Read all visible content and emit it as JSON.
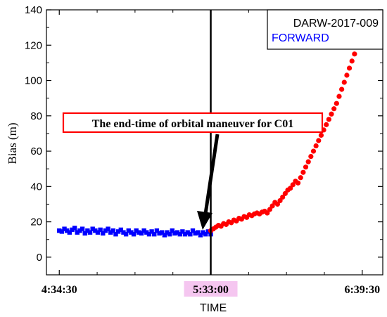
{
  "chart_data": {
    "type": "scatter",
    "title": "",
    "xlabel": "TIME",
    "ylabel": "Bias (m)",
    "ylim": [
      -10,
      140
    ],
    "y_ticks": [
      "0",
      "20",
      "40",
      "60",
      "80",
      "100",
      "120",
      "140"
    ],
    "x_tick_labels": [
      "4:34:30",
      "5:33:00",
      "6:39:30"
    ],
    "highlight_tick": "5:33:00",
    "legend": {
      "placement": "top-right",
      "lines": [
        {
          "text": "DARW-2017-009",
          "color": "#000000"
        },
        {
          "text": "FORWARD",
          "color": "#0000ff"
        }
      ]
    },
    "annotation": "The end-time of  orbital maneuver for C01",
    "colors": {
      "forward_series": "#0000ff",
      "after_series": "#ff0000",
      "annotation_box": "#ff0000",
      "highlight_tick_text": "#8b1a1a",
      "highlight_tick_bg": "#f5c6f0"
    },
    "series": [
      {
        "marker": "square",
        "color": "#0000ff",
        "points": [
          [
            0,
            15
          ],
          [
            1,
            14.5
          ],
          [
            2,
            16
          ],
          [
            3,
            15
          ],
          [
            4,
            14
          ],
          [
            5,
            15.5
          ],
          [
            6,
            16.5
          ],
          [
            7,
            14
          ],
          [
            8,
            15
          ],
          [
            9,
            16
          ],
          [
            10,
            13.5
          ],
          [
            11,
            15
          ],
          [
            12,
            14
          ],
          [
            13,
            16
          ],
          [
            14,
            15
          ],
          [
            15,
            14
          ],
          [
            16,
            15.5
          ],
          [
            17,
            13.5
          ],
          [
            18,
            15
          ],
          [
            19,
            16
          ],
          [
            20,
            14
          ],
          [
            21,
            15
          ],
          [
            22,
            13
          ],
          [
            23,
            14.5
          ],
          [
            24,
            15.5
          ],
          [
            25,
            14
          ],
          [
            26,
            13
          ],
          [
            27,
            15
          ],
          [
            28,
            14
          ],
          [
            29,
            13
          ],
          [
            30,
            15
          ],
          [
            31,
            14
          ],
          [
            32,
            13.5
          ],
          [
            33,
            15
          ],
          [
            34,
            14
          ],
          [
            35,
            13
          ],
          [
            36,
            14.5
          ],
          [
            37,
            13
          ],
          [
            38,
            15
          ],
          [
            39,
            13.5
          ],
          [
            40,
            14
          ],
          [
            41,
            12.5
          ],
          [
            42,
            14
          ],
          [
            43,
            13
          ],
          [
            44,
            15
          ],
          [
            45,
            13.5
          ],
          [
            46,
            14
          ],
          [
            47,
            13
          ],
          [
            48,
            14.5
          ],
          [
            49,
            13
          ],
          [
            50,
            14
          ],
          [
            51,
            13
          ],
          [
            52,
            15
          ],
          [
            53,
            13.5
          ],
          [
            54,
            14
          ],
          [
            55,
            12.5
          ],
          [
            56,
            14
          ],
          [
            57,
            13
          ],
          [
            58,
            14.5
          ],
          [
            59,
            13
          ]
        ]
      },
      {
        "marker": "circle",
        "color": "#ff0000",
        "points": [
          [
            59,
            15
          ],
          [
            60,
            16
          ],
          [
            61,
            17
          ],
          [
            62,
            18
          ],
          [
            63,
            17.5
          ],
          [
            64,
            19
          ],
          [
            65,
            18.5
          ],
          [
            66,
            20
          ],
          [
            67,
            19.5
          ],
          [
            68,
            21
          ],
          [
            69,
            20.5
          ],
          [
            70,
            22
          ],
          [
            71,
            21.5
          ],
          [
            72,
            23
          ],
          [
            73,
            22.5
          ],
          [
            74,
            24
          ],
          [
            75,
            23.5
          ],
          [
            76,
            24.5
          ],
          [
            77,
            25
          ],
          [
            78,
            24.5
          ],
          [
            79,
            25.5
          ],
          [
            80,
            26
          ],
          [
            81,
            25
          ],
          [
            82,
            27
          ],
          [
            83,
            29
          ],
          [
            84,
            31
          ],
          [
            85,
            30
          ],
          [
            86,
            32
          ],
          [
            87,
            34
          ],
          [
            88,
            36
          ],
          [
            89,
            38
          ],
          [
            90,
            39
          ],
          [
            91,
            41
          ],
          [
            92,
            43
          ],
          [
            93,
            42
          ],
          [
            94,
            45
          ],
          [
            95,
            48
          ],
          [
            96,
            51
          ],
          [
            97,
            54
          ],
          [
            98,
            57
          ],
          [
            99,
            60
          ],
          [
            100,
            63
          ],
          [
            101,
            66
          ],
          [
            102,
            69
          ],
          [
            103,
            72
          ],
          [
            104,
            75
          ],
          [
            105,
            78
          ],
          [
            106,
            81
          ],
          [
            107,
            84
          ],
          [
            108,
            87
          ],
          [
            109,
            91
          ],
          [
            110,
            95
          ],
          [
            111,
            99
          ],
          [
            112,
            103
          ],
          [
            113,
            107
          ],
          [
            114,
            111
          ],
          [
            115,
            115
          ],
          [
            116,
            119
          ],
          [
            117,
            121
          ]
        ]
      }
    ],
    "x_domain": [
      -5,
      126
    ],
    "x_tick_positions": [
      0,
      59,
      118
    ]
  }
}
